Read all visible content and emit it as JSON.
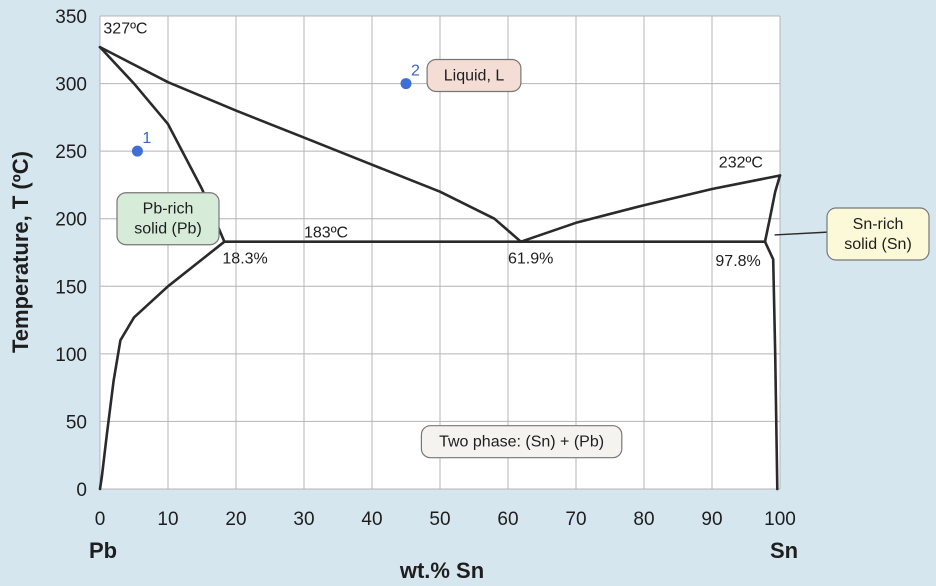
{
  "chart_data": {
    "type": "line",
    "xlabel": "wt.% Sn",
    "ylabel": "Temperature, T (ºC)",
    "xlim": [
      0,
      100
    ],
    "ylim": [
      0,
      350
    ],
    "x_ticks": [
      0,
      10,
      20,
      30,
      40,
      50,
      60,
      70,
      80,
      90,
      100
    ],
    "y_ticks": [
      0,
      50,
      100,
      150,
      200,
      250,
      300,
      350
    ],
    "x_end_labels": {
      "left": "Pb",
      "right": "Sn"
    },
    "grid": true,
    "curves": [
      {
        "id": "liquidus-left",
        "points": [
          [
            0,
            327
          ],
          [
            10,
            301
          ],
          [
            20,
            280
          ],
          [
            30,
            260
          ],
          [
            40,
            240
          ],
          [
            50,
            220
          ],
          [
            58,
            200
          ],
          [
            61.9,
            183
          ]
        ]
      },
      {
        "id": "liquidus-right",
        "points": [
          [
            61.9,
            183
          ],
          [
            70,
            197
          ],
          [
            80,
            210
          ],
          [
            90,
            222
          ],
          [
            100,
            232
          ]
        ]
      },
      {
        "id": "solidus-left",
        "points": [
          [
            0,
            327
          ],
          [
            5,
            300
          ],
          [
            10,
            270
          ],
          [
            15,
            222
          ],
          [
            18.3,
            183
          ]
        ]
      },
      {
        "id": "solvus-left",
        "points": [
          [
            18.3,
            183
          ],
          [
            10,
            150
          ],
          [
            5,
            127
          ],
          [
            3,
            110
          ],
          [
            2,
            80
          ],
          [
            1,
            40
          ],
          [
            0.3,
            10
          ],
          [
            0,
            0
          ]
        ]
      },
      {
        "id": "eutectic-isotherm",
        "points": [
          [
            18.3,
            183
          ],
          [
            97.8,
            183
          ]
        ]
      },
      {
        "id": "solidus-right",
        "points": [
          [
            97.8,
            183
          ],
          [
            98.5,
            200
          ],
          [
            99.3,
            220
          ],
          [
            100,
            232
          ]
        ]
      },
      {
        "id": "solvus-right",
        "points": [
          [
            97.8,
            183
          ],
          [
            99,
            170
          ],
          [
            99.3,
            100
          ],
          [
            99.6,
            0
          ]
        ]
      }
    ],
    "points": [
      {
        "label": "1",
        "x": 5.5,
        "y": 250
      },
      {
        "label": "2",
        "x": 45,
        "y": 300
      }
    ],
    "annotations": [
      {
        "text": "327ºC",
        "x": 0.5,
        "y": 337
      },
      {
        "text": "232ºC",
        "x": 91,
        "y": 238
      },
      {
        "text": "183ºC",
        "x": 30,
        "y": 186
      },
      {
        "text": "18.3%",
        "x": 18,
        "y": 167
      },
      {
        "text": "61.9%",
        "x": 60,
        "y": 167
      },
      {
        "text": "97.8%",
        "x": 90.5,
        "y": 165
      }
    ],
    "region_labels": [
      {
        "lines": [
          "Liquid, L"
        ],
        "x": 55,
        "y": 306,
        "fill": "#f4ddd5"
      },
      {
        "lines": [
          "Pb-rich",
          "solid (Pb)"
        ],
        "x": 10,
        "y": 200,
        "fill": "#d6ecd9"
      },
      {
        "lines": [
          "Two phase: (Sn) + (Pb)"
        ],
        "x": 62,
        "y": 35,
        "fill": "#f5f3f0"
      }
    ],
    "callout": {
      "lines": [
        "Sn-rich",
        "solid (Sn)"
      ],
      "fill": "#fbf9d7",
      "target": [
        99.2,
        188
      ]
    },
    "colors": {
      "line": "#2a2a2a",
      "grid": "#b4b4b4",
      "point": "#3e6fd6",
      "plot_bg": "#ffffff",
      "outer_bg": "#d6e6ef"
    }
  }
}
